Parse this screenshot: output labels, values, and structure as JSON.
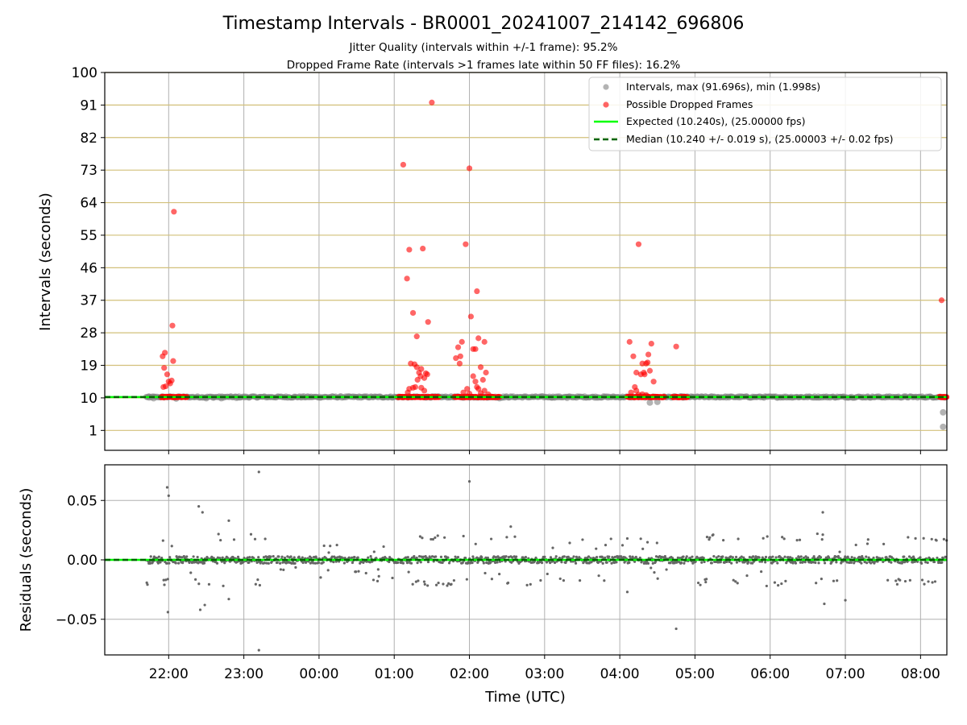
{
  "chart_data": [
    {
      "type": "scatter",
      "title": "Timestamp Intervals - BR0001_20241007_214142_696806",
      "subtitle_lines": [
        "Jitter Quality (intervals within +/-1 frame): 95.2%",
        "Dropped Frame Rate (intervals >1 frames late within 50 FF files): 16.2%"
      ],
      "xlabel": "",
      "ylabel": "Intervals (seconds)",
      "x_units": "hours since 22:00 UTC",
      "xlim": [
        -0.85,
        10.35
      ],
      "ylim": [
        -4.5,
        100
      ],
      "yticks": [
        1,
        10,
        19,
        28,
        37,
        46,
        55,
        64,
        73,
        82,
        91,
        100
      ],
      "ytick_labels": [
        "1",
        "10",
        "19",
        "28",
        "37",
        "46",
        "55",
        "64",
        "73",
        "82",
        "91",
        "100"
      ],
      "grid": true,
      "legend_position": "top-right",
      "legend": [
        "Intervals, max (91.696s), min (1.998s)",
        "Possible Dropped Frames",
        "Expected (10.240s), (25.00000 fps)",
        "Median (10.240 +/- 0.019 s), (25.00003 +/- 0.02 fps)"
      ],
      "expected_interval": 10.24,
      "median_interval": 10.24,
      "series": [
        {
          "name": "Intervals, max (91.696s), min (1.998s)",
          "color": "#808080",
          "x_start": -0.3,
          "x_end": 10.35,
          "baseline": 10.24,
          "extra_points": [
            [
              -0.26,
              10.1
            ],
            [
              -0.2,
              9.9
            ],
            [
              0.1,
              9.8
            ],
            [
              0.5,
              9.9
            ],
            [
              0.6,
              10.1
            ],
            [
              0.7,
              9.9
            ],
            [
              0.9,
              10.0
            ],
            [
              4.3,
              10.2
            ],
            [
              4.4,
              9.9
            ],
            [
              5.1,
              10.1
            ],
            [
              5.3,
              10.0
            ],
            [
              6.4,
              8.7
            ],
            [
              6.5,
              8.9
            ],
            [
              10.3,
              6.0
            ],
            [
              10.3,
              2.0
            ]
          ]
        },
        {
          "name": "Possible Dropped Frames",
          "color": "#ff0000",
          "points": [
            [
              -0.08,
              21.5
            ],
            [
              -0.05,
              22.5
            ],
            [
              -0.02,
              16.5
            ],
            [
              0.02,
              14.0
            ],
            [
              0.05,
              30.0
            ],
            [
              0.06,
              20.2
            ],
            [
              0.07,
              61.5
            ],
            [
              -0.06,
              18.3
            ],
            [
              -0.04,
              13.2
            ],
            [
              0.0,
              14.5
            ],
            [
              -0.07,
              13.0
            ],
            [
              0.04,
              14.8
            ],
            [
              3.12,
              74.5
            ],
            [
              3.17,
              43.0
            ],
            [
              3.2,
              51.0
            ],
            [
              3.25,
              33.5
            ],
            [
              3.3,
              27.0
            ],
            [
              3.38,
              51.3
            ],
            [
              3.45,
              31.0
            ],
            [
              3.5,
              91.7
            ],
            [
              3.22,
              19.5
            ],
            [
              3.27,
              19.3
            ],
            [
              3.3,
              18.5
            ],
            [
              3.33,
              17.0
            ],
            [
              3.35,
              16.0
            ],
            [
              3.4,
              15.5
            ],
            [
              3.42,
              16.8
            ],
            [
              3.44,
              16.5
            ],
            [
              3.36,
              18.0
            ],
            [
              3.31,
              15.0
            ],
            [
              3.2,
              12.5
            ],
            [
              3.28,
              13.0
            ],
            [
              3.36,
              12.8
            ],
            [
              3.4,
              12.0
            ],
            [
              3.18,
              11.5
            ],
            [
              3.25,
              12.8
            ],
            [
              3.82,
              21.0
            ],
            [
              3.85,
              24.0
            ],
            [
              3.9,
              25.5
            ],
            [
              3.87,
              19.5
            ],
            [
              3.95,
              52.5
            ],
            [
              4.0,
              73.5
            ],
            [
              4.02,
              32.5
            ],
            [
              4.05,
              23.5
            ],
            [
              4.08,
              23.5
            ],
            [
              4.1,
              39.5
            ],
            [
              4.12,
              26.5
            ],
            [
              4.15,
              18.5
            ],
            [
              4.2,
              25.5
            ],
            [
              4.22,
              17.0
            ],
            [
              4.18,
              15.0
            ],
            [
              4.05,
              16.0
            ],
            [
              4.08,
              14.5
            ],
            [
              4.12,
              12.5
            ],
            [
              4.2,
              12.0
            ],
            [
              3.97,
              12.5
            ],
            [
              4.25,
              11.0
            ],
            [
              3.88,
              21.5
            ],
            [
              4.1,
              13.0
            ],
            [
              3.92,
              11.5
            ],
            [
              4.15,
              11.3
            ],
            [
              4.0,
              11.2
            ],
            [
              6.13,
              25.5
            ],
            [
              6.18,
              21.5
            ],
            [
              6.22,
              17.0
            ],
            [
              6.25,
              52.5
            ],
            [
              6.28,
              16.5
            ],
            [
              6.3,
              19.5
            ],
            [
              6.32,
              17.0
            ],
            [
              6.35,
              19.5
            ],
            [
              6.38,
              22.0
            ],
            [
              6.4,
              17.5
            ],
            [
              6.42,
              25.0
            ],
            [
              6.45,
              14.5
            ],
            [
              6.2,
              13.0
            ],
            [
              6.15,
              11.5
            ],
            [
              6.3,
              11.0
            ],
            [
              6.25,
              10.9
            ],
            [
              6.35,
              10.8
            ],
            [
              6.22,
              12.0
            ],
            [
              6.37,
              19.8
            ],
            [
              6.33,
              16.5
            ],
            [
              6.75,
              24.2
            ],
            [
              10.28,
              37.0
            ]
          ],
          "baseline_clusters": [
            [
              -0.1,
              0.25
            ],
            [
              3.05,
              3.6
            ],
            [
              3.8,
              4.4
            ],
            [
              6.1,
              6.6
            ],
            [
              6.7,
              6.9
            ],
            [
              10.25,
              10.35
            ]
          ]
        },
        {
          "name": "Expected (10.240s), (25.00000 fps)",
          "color": "#00ff00",
          "value": 10.24
        },
        {
          "name": "Median (10.240 +/- 0.019 s), (25.00003 +/- 0.02 fps)",
          "color": "#006400",
          "value": 10.24
        }
      ],
      "colors": {
        "grid": "#d2c07a",
        "vgrid": "#b0b0b0"
      }
    },
    {
      "type": "scatter",
      "xlabel": "Time (UTC)",
      "ylabel": "Residuals (seconds)",
      "x_units": "hours since 22:00 UTC",
      "xlim": [
        -0.85,
        10.35
      ],
      "ylim": [
        -0.08,
        0.08
      ],
      "xticks": [
        0,
        1,
        2,
        3,
        4,
        5,
        6,
        7,
        8,
        9,
        10
      ],
      "xtick_labels": [
        "22:00",
        "23:00",
        "00:00",
        "01:00",
        "02:00",
        "03:00",
        "04:00",
        "05:00",
        "06:00",
        "07:00",
        "08:00"
      ],
      "yticks": [
        0.05,
        0.0,
        -0.05
      ],
      "ytick_labels": [
        "0.05",
        "0.00",
        "−0.05"
      ],
      "grid": true,
      "series": [
        {
          "name": "Residuals",
          "color": "#666666",
          "x_start": -0.3,
          "x_end": 10.35,
          "outliers": [
            [
              -0.02,
              0.061
            ],
            [
              0.0,
              0.054
            ],
            [
              -0.01,
              -0.044
            ],
            [
              0.4,
              0.045
            ],
            [
              0.45,
              0.04
            ],
            [
              0.42,
              -0.042
            ],
            [
              0.48,
              -0.038
            ],
            [
              0.8,
              0.033
            ],
            [
              0.8,
              -0.033
            ],
            [
              1.2,
              0.074
            ],
            [
              1.2,
              -0.076
            ],
            [
              4.0,
              0.066
            ],
            [
              4.55,
              0.028
            ],
            [
              6.1,
              0.018
            ],
            [
              6.1,
              -0.027
            ],
            [
              6.75,
              -0.058
            ],
            [
              8.7,
              0.04
            ],
            [
              8.72,
              -0.037
            ],
            [
              9.0,
              -0.034
            ]
          ],
          "bands": [
            [
              -0.3,
              0.0
            ],
            [
              0.3,
              1.4
            ],
            [
              3.2,
              4.0
            ],
            [
              4.4,
              4.9
            ],
            [
              6.7,
              7.6
            ],
            [
              7.9,
              8.9
            ],
            [
              9.6,
              10.35
            ]
          ]
        },
        {
          "name": "Expected",
          "color": "#00ff00",
          "value": 0
        },
        {
          "name": "Median",
          "color": "#006400",
          "value": 0
        }
      ]
    }
  ]
}
